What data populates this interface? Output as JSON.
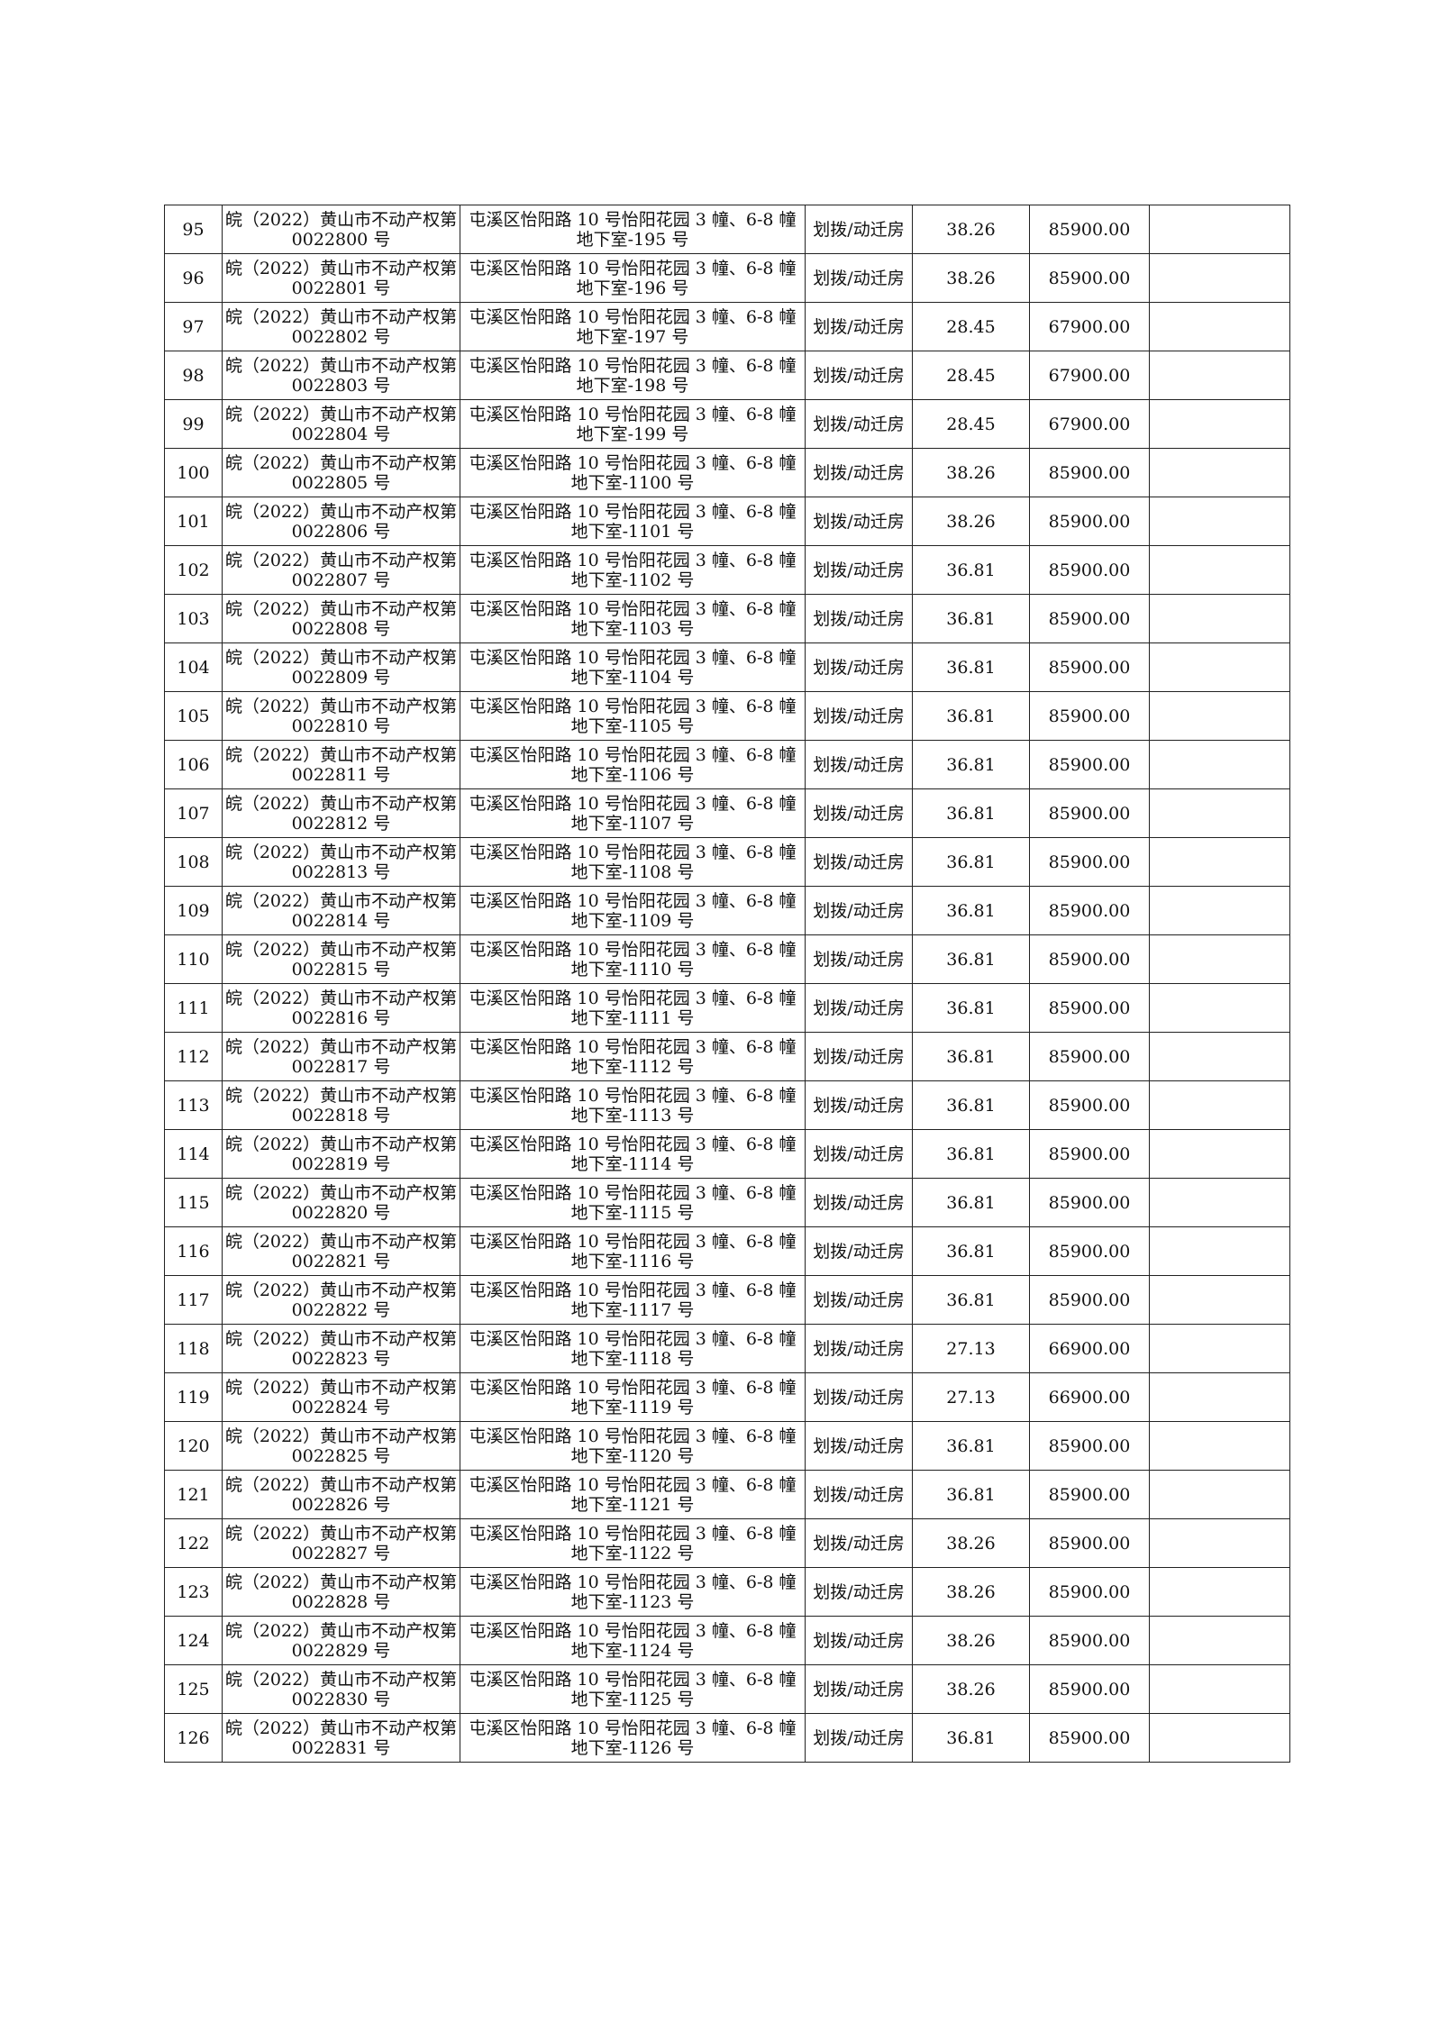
{
  "rows": [
    [
      "95",
      "皖（2022）黄山市不动产权第 0022800 号",
      "屯溪区怡阳路 10 号怡阳花园 3 幢、6-8 幢地下室-195 号",
      "划拨/动迁房",
      "38.26",
      "85900.00",
      ""
    ],
    [
      "96",
      "皖（2022）黄山市不动产权第 0022801 号",
      "屯溪区怡阳路 10 号怡阳花园 3 幢、6-8 幢地下室-196 号",
      "划拨/动迁房",
      "38.26",
      "85900.00",
      ""
    ],
    [
      "97",
      "皖（2022）黄山市不动产权第 0022802 号",
      "屯溪区怡阳路 10 号怡阳花园 3 幢、6-8 幢地下室-197 号",
      "划拨/动迁房",
      "28.45",
      "67900.00",
      ""
    ],
    [
      "98",
      "皖（2022）黄山市不动产权第 0022803 号",
      "屯溪区怡阳路 10 号怡阳花园 3 幢、6-8 幢地下室-198 号",
      "划拨/动迁房",
      "28.45",
      "67900.00",
      ""
    ],
    [
      "99",
      "皖（2022）黄山市不动产权第 0022804 号",
      "屯溪区怡阳路 10 号怡阳花园 3 幢、6-8 幢地下室-199 号",
      "划拨/动迁房",
      "28.45",
      "67900.00",
      ""
    ],
    [
      "100",
      "皖（2022）黄山市不动产权第 0022805 号",
      "屯溪区怡阳路 10 号怡阳花园 3 幢、6-8 幢地下室-1100 号",
      "划拨/动迁房",
      "38.26",
      "85900.00",
      ""
    ],
    [
      "101",
      "皖（2022）黄山市不动产权第 0022806 号",
      "屯溪区怡阳路 10 号怡阳花园 3 幢、6-8 幢地下室-1101 号",
      "划拨/动迁房",
      "38.26",
      "85900.00",
      ""
    ],
    [
      "102",
      "皖（2022）黄山市不动产权第 0022807 号",
      "屯溪区怡阳路 10 号怡阳花园 3 幢、6-8 幢地下室-1102 号",
      "划拨/动迁房",
      "36.81",
      "85900.00",
      ""
    ],
    [
      "103",
      "皖（2022）黄山市不动产权第 0022808 号",
      "屯溪区怡阳路 10 号怡阳花园 3 幢、6-8 幢地下室-1103 号",
      "划拨/动迁房",
      "36.81",
      "85900.00",
      ""
    ],
    [
      "104",
      "皖（2022）黄山市不动产权第 0022809 号",
      "屯溪区怡阳路 10 号怡阳花园 3 幢、6-8 幢地下室-1104 号",
      "划拨/动迁房",
      "36.81",
      "85900.00",
      ""
    ],
    [
      "105",
      "皖（2022）黄山市不动产权第 0022810 号",
      "屯溪区怡阳路 10 号怡阳花园 3 幢、6-8 幢地下室-1105 号",
      "划拨/动迁房",
      "36.81",
      "85900.00",
      ""
    ],
    [
      "106",
      "皖（2022）黄山市不动产权第 0022811 号",
      "屯溪区怡阳路 10 号怡阳花园 3 幢、6-8 幢地下室-1106 号",
      "划拨/动迁房",
      "36.81",
      "85900.00",
      ""
    ],
    [
      "107",
      "皖（2022）黄山市不动产权第 0022812 号",
      "屯溪区怡阳路 10 号怡阳花园 3 幢、6-8 幢地下室-1107 号",
      "划拨/动迁房",
      "36.81",
      "85900.00",
      ""
    ],
    [
      "108",
      "皖（2022）黄山市不动产权第 0022813 号",
      "屯溪区怡阳路 10 号怡阳花园 3 幢、6-8 幢地下室-1108 号",
      "划拨/动迁房",
      "36.81",
      "85900.00",
      ""
    ],
    [
      "109",
      "皖（2022）黄山市不动产权第 0022814 号",
      "屯溪区怡阳路 10 号怡阳花园 3 幢、6-8 幢地下室-1109 号",
      "划拨/动迁房",
      "36.81",
      "85900.00",
      ""
    ],
    [
      "110",
      "皖（2022）黄山市不动产权第 0022815 号",
      "屯溪区怡阳路 10 号怡阳花园 3 幢、6-8 幢地下室-1110 号",
      "划拨/动迁房",
      "36.81",
      "85900.00",
      ""
    ],
    [
      "111",
      "皖（2022）黄山市不动产权第 0022816 号",
      "屯溪区怡阳路 10 号怡阳花园 3 幢、6-8 幢地下室-1111 号",
      "划拨/动迁房",
      "36.81",
      "85900.00",
      ""
    ],
    [
      "112",
      "皖（2022）黄山市不动产权第 0022817 号",
      "屯溪区怡阳路 10 号怡阳花园 3 幢、6-8 幢地下室-1112 号",
      "划拨/动迁房",
      "36.81",
      "85900.00",
      ""
    ],
    [
      "113",
      "皖（2022）黄山市不动产权第 0022818 号",
      "屯溪区怡阳路 10 号怡阳花园 3 幢、6-8 幢地下室-1113 号",
      "划拨/动迁房",
      "36.81",
      "85900.00",
      ""
    ],
    [
      "114",
      "皖（2022）黄山市不动产权第 0022819 号",
      "屯溪区怡阳路 10 号怡阳花园 3 幢、6-8 幢地下室-1114 号",
      "划拨/动迁房",
      "36.81",
      "85900.00",
      ""
    ],
    [
      "115",
      "皖（2022）黄山市不动产权第 0022820 号",
      "屯溪区怡阳路 10 号怡阳花园 3 幢、6-8 幢地下室-1115 号",
      "划拨/动迁房",
      "36.81",
      "85900.00",
      ""
    ],
    [
      "116",
      "皖（2022）黄山市不动产权第 0022821 号",
      "屯溪区怡阳路 10 号怡阳花园 3 幢、6-8 幢地下室-1116 号",
      "划拨/动迁房",
      "36.81",
      "85900.00",
      ""
    ],
    [
      "117",
      "皖（2022）黄山市不动产权第 0022822 号",
      "屯溪区怡阳路 10 号怡阳花园 3 幢、6-8 幢地下室-1117 号",
      "划拨/动迁房",
      "36.81",
      "85900.00",
      ""
    ],
    [
      "118",
      "皖（2022）黄山市不动产权第 0022823 号",
      "屯溪区怡阳路 10 号怡阳花园 3 幢、6-8 幢地下室-1118 号",
      "划拨/动迁房",
      "27.13",
      "66900.00",
      ""
    ],
    [
      "119",
      "皖（2022）黄山市不动产权第 0022824 号",
      "屯溪区怡阳路 10 号怡阳花园 3 幢、6-8 幢地下室-1119 号",
      "划拨/动迁房",
      "27.13",
      "66900.00",
      ""
    ],
    [
      "120",
      "皖（2022）黄山市不动产权第 0022825 号",
      "屯溪区怡阳路 10 号怡阳花园 3 幢、6-8 幢地下室-1120 号",
      "划拨/动迁房",
      "36.81",
      "85900.00",
      ""
    ],
    [
      "121",
      "皖（2022）黄山市不动产权第 0022826 号",
      "屯溪区怡阳路 10 号怡阳花园 3 幢、6-8 幢地下室-1121 号",
      "划拨/动迁房",
      "36.81",
      "85900.00",
      ""
    ],
    [
      "122",
      "皖（2022）黄山市不动产权第 0022827 号",
      "屯溪区怡阳路 10 号怡阳花园 3 幢、6-8 幢地下室-1122 号",
      "划拨/动迁房",
      "38.26",
      "85900.00",
      ""
    ],
    [
      "123",
      "皖（2022）黄山市不动产权第 0022828 号",
      "屯溪区怡阳路 10 号怡阳花园 3 幢、6-8 幢地下室-1123 号",
      "划拨/动迁房",
      "38.26",
      "85900.00",
      ""
    ],
    [
      "124",
      "皖（2022）黄山市不动产权第 0022829 号",
      "屯溪区怡阳路 10 号怡阳花园 3 幢、6-8 幢地下室-1124 号",
      "划拨/动迁房",
      "38.26",
      "85900.00",
      ""
    ],
    [
      "125",
      "皖（2022）黄山市不动产权第 0022830 号",
      "屯溪区怡阳路 10 号怡阳花园 3 幢、6-8 幢地下室-1125 号",
      "划拨/动迁房",
      "38.26",
      "85900.00",
      ""
    ],
    [
      "126",
      "皖（2022）黄山市不动产权第 0022831 号",
      "屯溪区怡阳路 10 号怡阳花园 3 幢、6-8 幢地下室-1126 号",
      "划拨/动迁房",
      "36.81",
      "85900.00",
      ""
    ]
  ]
}
